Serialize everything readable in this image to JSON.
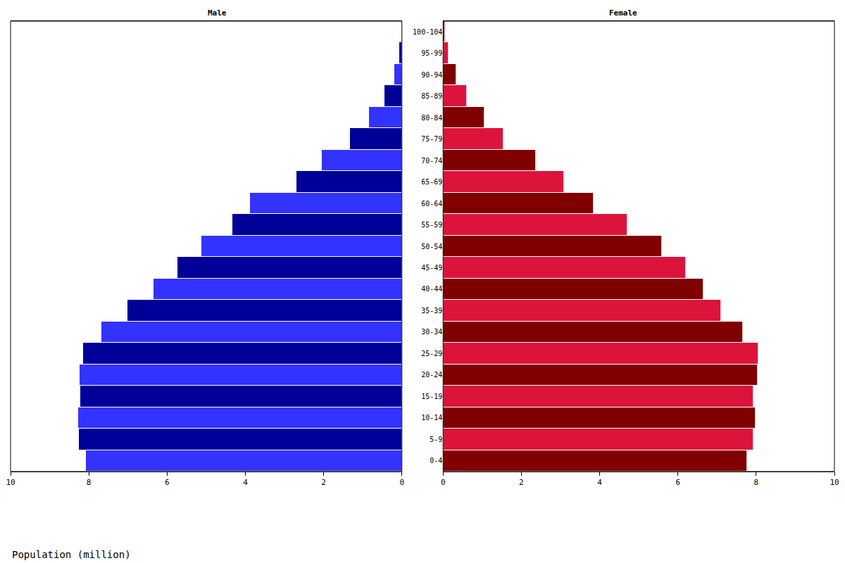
{
  "chart_data": [
    {
      "type": "bar",
      "orientation": "horizontal",
      "title": "Male",
      "xlabel": "Population (million)",
      "categories": [
        "0-4",
        "5-9",
        "10-14",
        "15-19",
        "20-24",
        "25-29",
        "30-34",
        "35-39",
        "40-44",
        "45-49",
        "50-54",
        "55-59",
        "60-64",
        "65-69",
        "70-74",
        "75-79",
        "80-84",
        "85-89",
        "90-94",
        "95-99",
        "100-104"
      ],
      "values": [
        8.07,
        8.25,
        8.28,
        8.21,
        8.23,
        8.14,
        7.68,
        7.01,
        6.34,
        5.73,
        5.13,
        4.34,
        3.88,
        2.69,
        2.04,
        1.33,
        0.85,
        0.44,
        0.19,
        0.07,
        0.02
      ],
      "colors": [
        "#3333ff",
        "#000099",
        "#3333ff",
        "#000099",
        "#3333ff",
        "#000099",
        "#3333ff",
        "#000099",
        "#3333ff",
        "#000099",
        "#3333ff",
        "#000099",
        "#3333ff",
        "#000099",
        "#3333ff",
        "#000099",
        "#3333ff",
        "#000099",
        "#3333ff",
        "#000099",
        "#3333ff"
      ],
      "xlim": [
        10,
        0
      ],
      "xticks": [
        10,
        8,
        6,
        4,
        2,
        0
      ],
      "grid": false
    },
    {
      "type": "bar",
      "orientation": "horizontal",
      "title": "Female",
      "categories": [
        "0-4",
        "5-9",
        "10-14",
        "15-19",
        "20-24",
        "25-29",
        "30-34",
        "35-39",
        "40-44",
        "45-49",
        "50-54",
        "55-59",
        "60-64",
        "65-69",
        "70-74",
        "75-79",
        "80-84",
        "85-89",
        "90-94",
        "95-99",
        "100-104"
      ],
      "values": [
        7.78,
        7.94,
        7.99,
        7.94,
        8.05,
        8.06,
        7.67,
        7.1,
        6.66,
        6.2,
        5.6,
        4.72,
        3.85,
        3.09,
        2.38,
        1.55,
        1.07,
        0.62,
        0.34,
        0.14,
        0.05
      ],
      "colors": [
        "#800000",
        "#dc143c",
        "#800000",
        "#dc143c",
        "#800000",
        "#dc143c",
        "#800000",
        "#dc143c",
        "#800000",
        "#dc143c",
        "#800000",
        "#dc143c",
        "#800000",
        "#dc143c",
        "#800000",
        "#dc143c",
        "#800000",
        "#dc143c",
        "#800000",
        "#dc143c",
        "#800000"
      ],
      "xlim": [
        0,
        10
      ],
      "xticks": [
        0,
        2,
        4,
        6,
        8,
        10
      ],
      "grid": false
    }
  ]
}
